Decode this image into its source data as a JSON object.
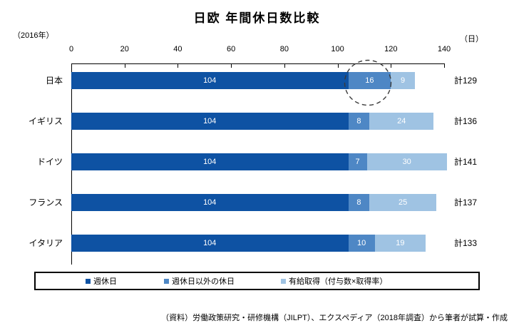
{
  "meta": {
    "title": "日欧 年間休日数比較",
    "year_note": "（2016年）",
    "unit_note": "（日）",
    "source_note": "（資料）労働政策研究・研修機構（JILPT）、エクスペディア（2018年調査）から筆者が試算・作成"
  },
  "chart_data": {
    "type": "bar",
    "orientation": "horizontal",
    "stacked": true,
    "title": "日欧 年間休日数比較",
    "categories": [
      "日本",
      "イギリス",
      "ドイツ",
      "フランス",
      "イタリア"
    ],
    "series": [
      {
        "name": "週休日",
        "color": "#0E52A3",
        "values": [
          104,
          104,
          104,
          104,
          104
        ]
      },
      {
        "name": "週休日以外の休日",
        "color": "#4E87C5",
        "values": [
          16,
          8,
          7,
          8,
          10
        ]
      },
      {
        "name": "有給取得（付与数×取得率）",
        "color": "#9FC3E3",
        "values": [
          9,
          24,
          30,
          25,
          19
        ]
      }
    ],
    "totals_text": [
      "計129",
      "計136",
      "計141",
      "計137",
      "計133"
    ],
    "totals_values": [
      129,
      136,
      141,
      137,
      133
    ],
    "xlim": [
      0,
      140
    ],
    "x_ticks": [
      0,
      20,
      40,
      60,
      80,
      100,
      120,
      140
    ],
    "grid": false,
    "legend_position": "bottom-box",
    "annotation": {
      "shape": "dashed-ellipse",
      "highlights": "日本の週休日以外の休日 16",
      "stroke_color": "#3a3a3a"
    },
    "value_label_color": "#ffffff"
  }
}
